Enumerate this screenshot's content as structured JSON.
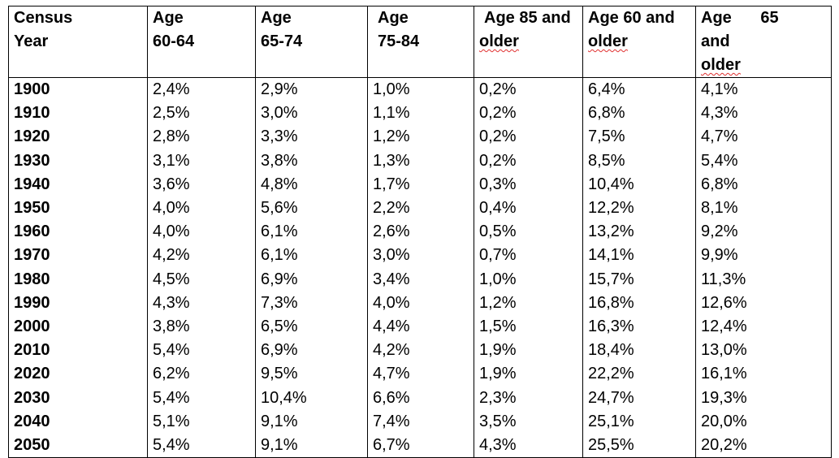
{
  "headers": [
    {
      "line1": "Census",
      "line2": "Year"
    },
    {
      "line1": "Age",
      "line2": "60-64"
    },
    {
      "line1": "Age",
      "line2": "65-74"
    },
    {
      "line1": "Age",
      "line2": "75-84"
    },
    {
      "line1": "Age 85 and",
      "line2": "older"
    },
    {
      "line1": "Age 60 and",
      "line2": "older"
    },
    {
      "line1": "Age 65 and",
      "line2": "older"
    }
  ],
  "rows": [
    [
      "1900",
      "2,4%",
      "2,9%",
      "1,0%",
      "0,2%",
      "6,4%",
      "4,1%"
    ],
    [
      "1910",
      "2,5%",
      "3,0%",
      "1,1%",
      "0,2%",
      "6,8%",
      "4,3%"
    ],
    [
      "1920",
      "2,8%",
      "3,3%",
      "1,2%",
      "0,2%",
      "7,5%",
      "4,7%"
    ],
    [
      "1930",
      "3,1%",
      "3,8%",
      "1,3%",
      "0,2%",
      "8,5%",
      "5,4%"
    ],
    [
      "1940",
      "3,6%",
      "4,8%",
      "1,7%",
      "0,3%",
      "10,4%",
      "6,8%"
    ],
    [
      "1950",
      "4,0%",
      "5,6%",
      "2,2%",
      "0,4%",
      "12,2%",
      "8,1%"
    ],
    [
      "1960",
      "4,0%",
      "6,1%",
      "2,6%",
      "0,5%",
      "13,2%",
      "9,2%"
    ],
    [
      "1970",
      "4,2%",
      "6,1%",
      "3,0%",
      "0,7%",
      "14,1%",
      "9,9%"
    ],
    [
      "1980",
      "4,5%",
      "6,9%",
      "3,4%",
      "1,0%",
      "15,7%",
      "11,3%"
    ],
    [
      "1990",
      "4,3%",
      "7,3%",
      "4,0%",
      "1,2%",
      "16,8%",
      "12,6%"
    ],
    [
      "2000",
      "3,8%",
      "6,5%",
      "4,4%",
      "1,5%",
      "16,3%",
      "12,4%"
    ],
    [
      "2010",
      "5,4%",
      "6,9%",
      "4,2%",
      "1,9%",
      "18,4%",
      "13,0%"
    ],
    [
      "2020",
      "6,2%",
      "9,5%",
      "4,7%",
      "1,9%",
      "22,2%",
      "16,1%"
    ],
    [
      "2030",
      "5,4%",
      "10,4%",
      "6,6%",
      "2,3%",
      "24,7%",
      "19,3%"
    ],
    [
      "2040",
      "5,1%",
      "9,1%",
      "7,4%",
      "3,5%",
      "25,1%",
      "20,0%"
    ],
    [
      "2050",
      "5,4%",
      "9,1%",
      "6,7%",
      "4,3%",
      "25,5%",
      "20,2%"
    ]
  ]
}
